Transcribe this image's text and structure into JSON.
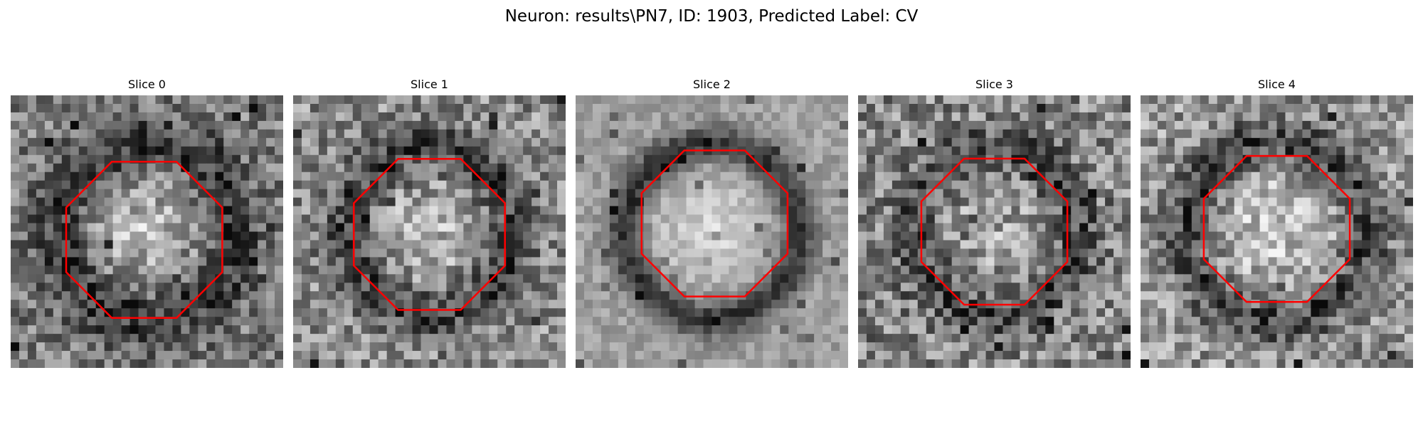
{
  "figure": {
    "title": "Neuron: results\\PN7, ID: 1903, Predicted Label: CV"
  },
  "colors": {
    "contour": "#ff0000",
    "background": "#ffffff"
  },
  "slices": [
    {
      "label": "Slice 0"
    },
    {
      "label": "Slice 1"
    },
    {
      "label": "Slice 2"
    },
    {
      "label": "Slice 3"
    },
    {
      "label": "Slice 4"
    }
  ]
}
